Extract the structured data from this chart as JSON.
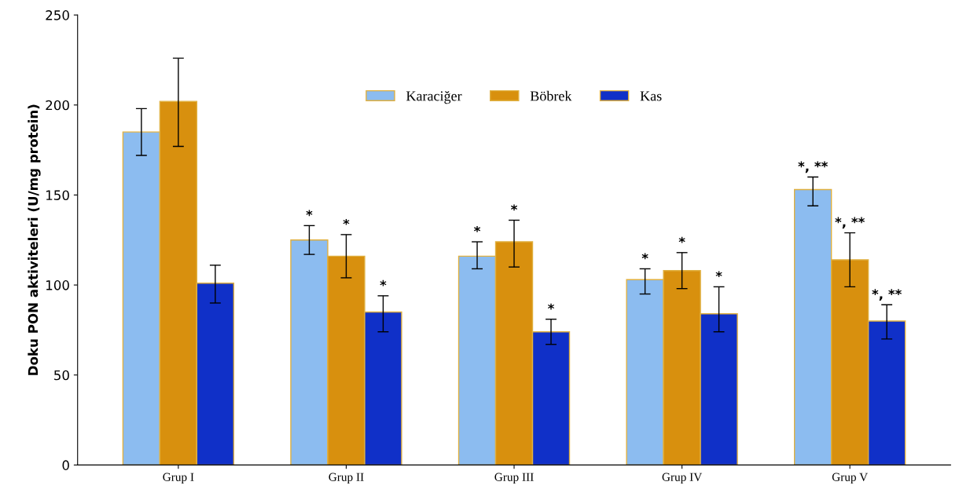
{
  "chart_data": {
    "type": "bar",
    "ylabel": "Doku PON aktiviteleri (U/mg protein)",
    "categories": [
      "Grup I",
      "Grup II",
      "Grup III",
      "Grup IV",
      "Grup V"
    ],
    "series": [
      {
        "name": "Karaciğer",
        "color": "#8cbcf0",
        "values": [
          185,
          125,
          116,
          103,
          153
        ],
        "errors": [
          [
            172,
            198
          ],
          [
            117,
            133
          ],
          [
            109,
            124
          ],
          [
            95,
            109
          ],
          [
            144,
            160
          ]
        ],
        "value_labels": [
          null,
          "*",
          "*",
          "*",
          "*, **"
        ]
      },
      {
        "name": "Böbrek",
        "color": "#d8900e",
        "values": [
          202,
          116,
          124,
          108,
          114
        ],
        "errors": [
          [
            177,
            226
          ],
          [
            104,
            128
          ],
          [
            110,
            136
          ],
          [
            98,
            118
          ],
          [
            99,
            129
          ]
        ],
        "value_labels": [
          null,
          "*",
          "*",
          "*",
          "*, **"
        ]
      },
      {
        "name": "Kas",
        "color": "#1030c8",
        "values": [
          101,
          85,
          74,
          84,
          80
        ],
        "errors": [
          [
            90,
            111
          ],
          [
            74,
            94
          ],
          [
            67,
            81
          ],
          [
            74,
            99
          ],
          [
            70,
            89
          ]
        ],
        "value_labels": [
          null,
          "*",
          "*",
          "*",
          "*, **"
        ]
      }
    ],
    "ylim": [
      0,
      250
    ],
    "yticks": [
      0,
      50,
      100,
      150,
      200,
      250
    ],
    "legend": "top",
    "grid": false
  }
}
